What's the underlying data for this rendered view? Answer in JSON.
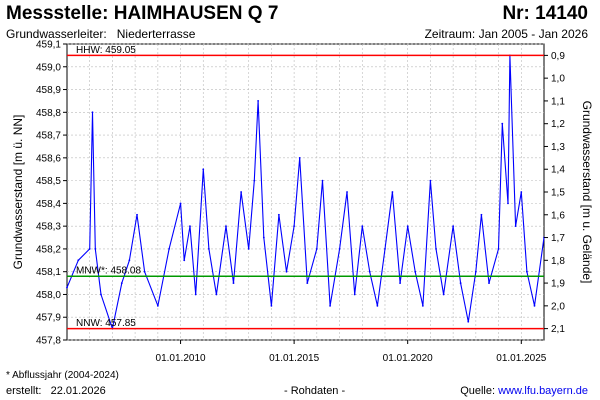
{
  "header": {
    "title": "Messstelle: HAIMHAUSEN Q 7",
    "number": "Nr: 14140",
    "aquifer_label": "Grundwasserleiter:",
    "aquifer_value": "Niederterrasse",
    "period": "Zeitraum: Jan 2005 - Jan 2026"
  },
  "footer": {
    "footnote": "* Abflussjahr (2004-2024)",
    "created_label": "erstellt:",
    "created_date": "22.01.2026",
    "rawdata": "- Rohdaten -",
    "source_label": "Quelle:",
    "source_link": "www.lfu.bayern.de"
  },
  "colors": {
    "series": "#0000ff",
    "hhw": "#ff0000",
    "nnw": "#ff0000",
    "mnw": "#009900",
    "grid": "#bbbbbb"
  },
  "chart_data": {
    "type": "line",
    "ylabel": "Grundwasserstand [m ü. NN]",
    "ylabel_right": "Grundwasserstand [m u. Gelände]",
    "xlim": [
      "2005-01-01",
      "2026-01-01"
    ],
    "ylim": [
      457.8,
      459.1
    ],
    "yticks": [
      "459,1",
      "459,0",
      "458,9",
      "458,8",
      "458,7",
      "458,6",
      "458,5",
      "458,4",
      "458,3",
      "458,2",
      "458,1",
      "458,0",
      "457,9",
      "457,8"
    ],
    "right_ticks": [
      "0,9",
      "1,0",
      "1,1",
      "1,2",
      "1,3",
      "1,4",
      "1,5",
      "1,6",
      "1,7",
      "1,8",
      "1,9",
      "2,0",
      "2,1"
    ],
    "right_ref_surface": 459.95,
    "xticks": [
      {
        "date": "2010-01-01",
        "label": "01.01.2010"
      },
      {
        "date": "2015-01-01",
        "label": "01.01.2015"
      },
      {
        "date": "2020-01-01",
        "label": "01.01.2020"
      },
      {
        "date": "2025-01-01",
        "label": "01.01.2025"
      }
    ],
    "grid": true,
    "reference_lines": [
      {
        "key": "hhw",
        "label": "HHW: 459.05",
        "value": 459.05
      },
      {
        "key": "mnw",
        "label": "MNW*: 458.08",
        "value": 458.08
      },
      {
        "key": "nnw",
        "label": "NNW: 457.85",
        "value": 457.85
      }
    ],
    "series": [
      {
        "x": [
          "2005-01-01",
          "2005-07-01",
          "2006-01-01",
          "2006-02-15",
          "2006-04-01",
          "2006-07-01",
          "2007-01-01",
          "2007-06-01",
          "2007-10-01",
          "2008-02-01",
          "2008-06-01",
          "2009-01-01",
          "2009-07-01",
          "2010-01-01",
          "2010-03-01",
          "2010-06-01",
          "2010-09-01",
          "2011-01-01",
          "2011-04-01",
          "2011-08-01",
          "2012-01-01",
          "2012-05-01",
          "2012-09-01",
          "2013-01-01",
          "2013-04-01",
          "2013-06-01",
          "2013-09-01",
          "2014-01-01",
          "2014-05-01",
          "2014-09-01",
          "2015-01-01",
          "2015-04-01",
          "2015-08-01",
          "2016-01-01",
          "2016-04-01",
          "2016-08-01",
          "2017-01-01",
          "2017-05-01",
          "2017-09-01",
          "2018-01-01",
          "2018-05-01",
          "2018-09-01",
          "2019-01-01",
          "2019-05-01",
          "2019-09-01",
          "2020-01-01",
          "2020-05-01",
          "2020-09-01",
          "2021-01-01",
          "2021-04-01",
          "2021-08-01",
          "2022-01-01",
          "2022-05-01",
          "2022-09-01",
          "2023-01-01",
          "2023-04-01",
          "2023-08-01",
          "2024-01-01",
          "2024-03-01",
          "2024-06-01",
          "2024-07-01",
          "2024-10-01",
          "2025-01-01",
          "2025-04-01",
          "2025-08-01",
          "2026-01-01"
        ],
        "y": [
          458.03,
          458.15,
          458.2,
          458.8,
          458.2,
          458.0,
          457.85,
          458.05,
          458.15,
          458.35,
          458.1,
          457.95,
          458.2,
          458.4,
          458.15,
          458.3,
          458.0,
          458.55,
          458.2,
          458.0,
          458.3,
          458.05,
          458.45,
          458.2,
          458.5,
          458.85,
          458.25,
          457.95,
          458.35,
          458.1,
          458.3,
          458.6,
          458.05,
          458.2,
          458.5,
          457.95,
          458.2,
          458.45,
          458.0,
          458.3,
          458.1,
          457.95,
          458.2,
          458.45,
          458.05,
          458.3,
          458.1,
          457.95,
          458.5,
          458.2,
          458.0,
          458.3,
          458.05,
          457.88,
          458.1,
          458.35,
          458.05,
          458.2,
          458.75,
          458.4,
          459.05,
          458.3,
          458.45,
          458.1,
          457.95,
          458.25
        ]
      }
    ]
  }
}
